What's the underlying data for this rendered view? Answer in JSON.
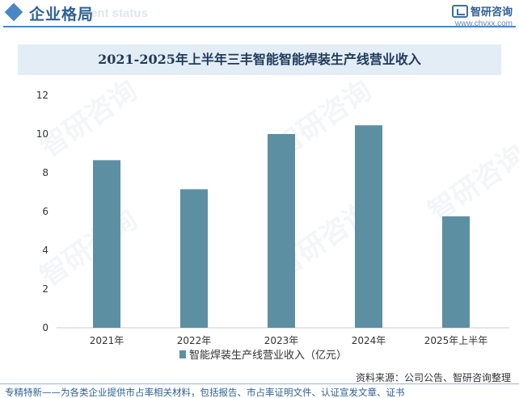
{
  "header": {
    "title": "企业格局",
    "ghost_text": "ent status",
    "brand_name": "智研咨询",
    "brand_url": "www.chyxx.com"
  },
  "chart_data": {
    "type": "bar",
    "title": "2021-2025年上半年三丰智能智能焊装生产线营业收入",
    "categories": [
      "2021年",
      "2022年",
      "2023年",
      "2024年",
      "2025年上半年"
    ],
    "series": [
      {
        "name": "智能焊装生产线营业收入（亿元）",
        "values": [
          8.65,
          7.15,
          10.0,
          10.45,
          5.75
        ],
        "color": "#5d8fa3"
      }
    ],
    "yticks": [
      "0",
      "2",
      "4",
      "6",
      "8",
      "10",
      "12"
    ],
    "ylim": [
      0,
      12
    ],
    "grid": false,
    "legend_position": "bottom"
  },
  "watermark": "智研咨询",
  "footer": {
    "source": "资料来源：公司公告、智研咨询整理",
    "tagline": "专精特新——为各类企业提供市占率相关材料，包括报告、市占率证明文件、认证宣发文章、证书"
  }
}
